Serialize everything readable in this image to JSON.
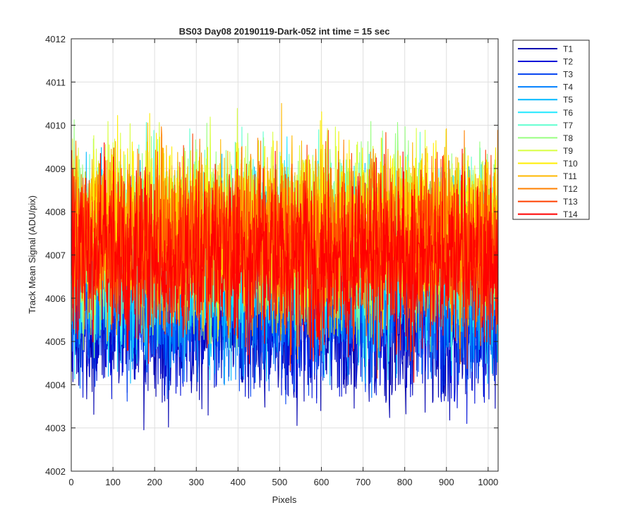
{
  "chart_data": {
    "type": "line",
    "title": "BS03 Day08 20190119-Dark-052 int time = 15 sec",
    "xlabel": "Pixels",
    "ylabel": "Track Mean Signal (ADU/pix)",
    "xlim": [
      0,
      1024
    ],
    "ylim": [
      4002,
      4012
    ],
    "xticks": [
      0,
      100,
      200,
      300,
      400,
      500,
      600,
      700,
      800,
      900,
      1000
    ],
    "yticks": [
      4002,
      4003,
      4004,
      4005,
      4006,
      4007,
      4008,
      4009,
      4010,
      4011,
      4012
    ],
    "grid": true,
    "legend_position": "outside-top-right",
    "num_points": 1024,
    "series": [
      {
        "name": "T1",
        "color": "#0000b0",
        "mean": 4005.4,
        "spread": 0.9
      },
      {
        "name": "T2",
        "color": "#0010d8",
        "mean": 4005.6,
        "spread": 0.9
      },
      {
        "name": "T3",
        "color": "#0040f0",
        "mean": 4005.9,
        "spread": 0.9
      },
      {
        "name": "T4",
        "color": "#0080ff",
        "mean": 4006.3,
        "spread": 0.95
      },
      {
        "name": "T5",
        "color": "#00b8ff",
        "mean": 4006.7,
        "spread": 1.0
      },
      {
        "name": "T6",
        "color": "#20e8ff",
        "mean": 4007.0,
        "spread": 1.0
      },
      {
        "name": "T7",
        "color": "#60ffd0",
        "mean": 4007.3,
        "spread": 1.0
      },
      {
        "name": "T8",
        "color": "#98ff80",
        "mean": 4007.5,
        "spread": 1.0
      },
      {
        "name": "T9",
        "color": "#d8ff40",
        "mean": 4007.6,
        "spread": 1.0
      },
      {
        "name": "T10",
        "color": "#ffee00",
        "mean": 4007.6,
        "spread": 1.0
      },
      {
        "name": "T11",
        "color": "#ffb800",
        "mean": 4007.5,
        "spread": 1.0
      },
      {
        "name": "T12",
        "color": "#ff8000",
        "mean": 4007.3,
        "spread": 1.0
      },
      {
        "name": "T13",
        "color": "#ff4000",
        "mean": 4007.1,
        "spread": 1.0
      },
      {
        "name": "T14",
        "color": "#ff0000",
        "mean": 4006.9,
        "spread": 1.0
      }
    ]
  }
}
